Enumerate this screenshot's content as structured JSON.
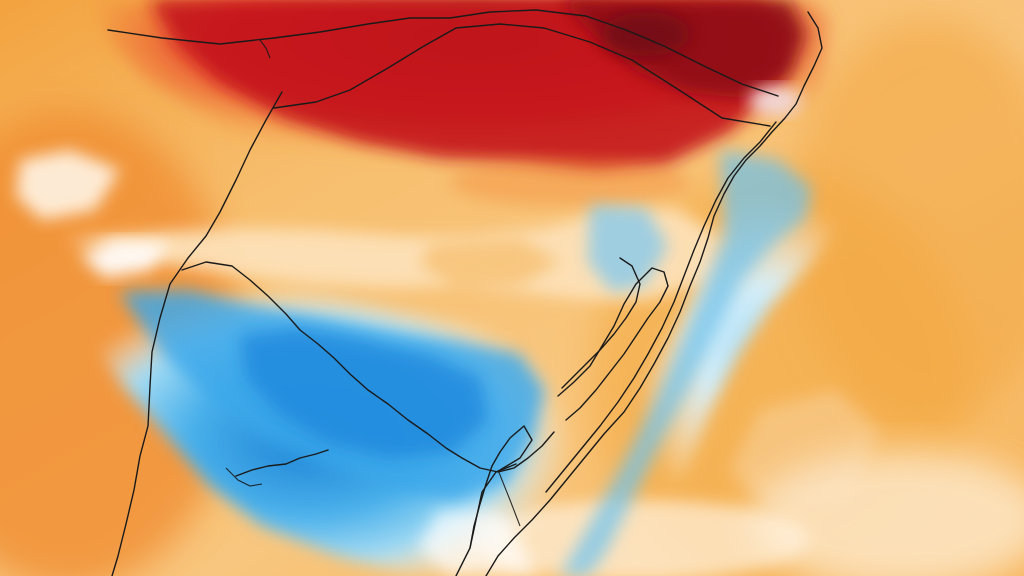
{
  "map": {
    "kind": "temperature-anomaly-heatmap",
    "region": "southern-brazil-uruguay-coast",
    "labels_visible": false,
    "palette": {
      "deep_red": "#a50f15",
      "red": "#d7191c",
      "red_orange": "#ef3b2c",
      "orange": "#f4a23a",
      "light_orange": "#f8c57b",
      "pale_orange": "#fbe0b5",
      "white": "#ffffff",
      "pale_blue": "#d8f0fb",
      "light_blue": "#9ed8f5",
      "blue": "#4db5ee",
      "deep_blue": "#1f8fe0",
      "border_line": "#1a1a1a",
      "dark_spot": "#6d0a12",
      "highlight": "#f1d9dc"
    },
    "features": [
      "warm-anomaly-north",
      "cool-anomaly-south",
      "atlantic-coast",
      "lagoon-coast",
      "state-borders",
      "river-lines"
    ]
  }
}
